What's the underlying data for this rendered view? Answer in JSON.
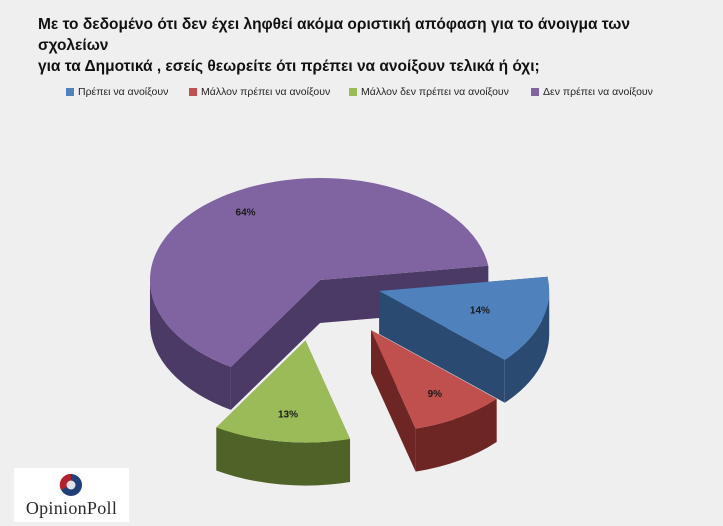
{
  "title": {
    "line1": "Με το δεδομένο ότι δεν έχει ληφθεί ακόμα οριστική απόφαση για το άνοιγμα των σχολείων",
    "line2": "για τα Δημοτικά , εσείς θεωρείτε ότι πρέπει να ανοίξουν τελικά  ή όχι;"
  },
  "chart_data": {
    "type": "pie",
    "title": "Με το δεδομένο ότι δεν έχει ληφθεί ακόμα οριστική απόφαση για το άνοιγμα των σχολείων για τα Δημοτικά , εσείς θεωρείτε ότι πρέπει να ανοίξουν τελικά  ή όχι;",
    "style": "3d-exploded",
    "legend_position": "top",
    "categories": [
      "Πρέπει να ανοίξουν",
      "Μάλλον πρέπει να ανοίξουν",
      "Μάλλον δεν πρέπει να ανοίξουν",
      "Δεν πρέπει να ανοίξουν"
    ],
    "values": [
      14,
      9,
      13,
      64
    ],
    "labels": [
      "14%",
      "9%",
      "13%",
      "64%"
    ],
    "colors": [
      "#4f81bd",
      "#c0504d",
      "#9bbb59",
      "#8064a2"
    ],
    "side_colors": [
      "#2a4a72",
      "#6e2624",
      "#4f6329",
      "#4b3a66"
    ]
  },
  "logo": {
    "text": "OpinionPoll",
    "colors": {
      "primary": "#b51f2e",
      "secondary": "#1f3f7a"
    }
  }
}
